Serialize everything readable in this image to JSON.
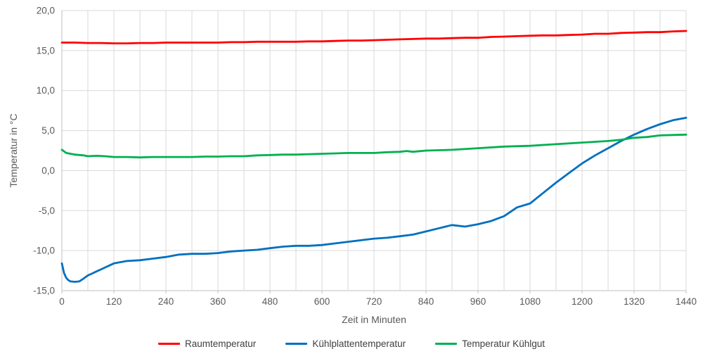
{
  "colors": {
    "background": "#ffffff",
    "gridline": "#d9d9d9",
    "axis_line": "#bfbfbf",
    "tick_text": "#595959",
    "title_text": "#595959",
    "legend_text": "#404040"
  },
  "chart_data": {
    "type": "line",
    "title": "",
    "xlabel": "Zeit in Minuten",
    "ylabel": "Temperatur in °C",
    "xlim": [
      0,
      1440
    ],
    "ylim": [
      -15,
      20
    ],
    "grid": true,
    "x_grid_step": 60,
    "y_grid_step": 5,
    "legend_position": "bottom",
    "x_ticks": [
      {
        "value": 0,
        "label": "0"
      },
      {
        "value": 120,
        "label": "120"
      },
      {
        "value": 240,
        "label": "240"
      },
      {
        "value": 360,
        "label": "360"
      },
      {
        "value": 480,
        "label": "480"
      },
      {
        "value": 600,
        "label": "600"
      },
      {
        "value": 720,
        "label": "720"
      },
      {
        "value": 840,
        "label": "840"
      },
      {
        "value": 960,
        "label": "960"
      },
      {
        "value": 1080,
        "label": "1080"
      },
      {
        "value": 1200,
        "label": "1200"
      },
      {
        "value": 1320,
        "label": "1320"
      },
      {
        "value": 1440,
        "label": "1440"
      }
    ],
    "y_ticks": [
      {
        "value": 20,
        "label": "20,0"
      },
      {
        "value": 15,
        "label": "15,0"
      },
      {
        "value": 10,
        "label": "10,0"
      },
      {
        "value": 5,
        "label": "5,0"
      },
      {
        "value": 0,
        "label": "0,0"
      },
      {
        "value": -5,
        "label": "-5,0"
      },
      {
        "value": -10,
        "label": "-10,0"
      },
      {
        "value": -15,
        "label": "-15,0"
      }
    ],
    "series": [
      {
        "name": "Raumtemperatur",
        "color": "#ff0000",
        "points": [
          [
            0,
            16.0
          ],
          [
            30,
            16.0
          ],
          [
            60,
            15.95
          ],
          [
            90,
            15.95
          ],
          [
            120,
            15.9
          ],
          [
            150,
            15.9
          ],
          [
            180,
            15.95
          ],
          [
            210,
            15.95
          ],
          [
            240,
            16.0
          ],
          [
            270,
            16.0
          ],
          [
            300,
            16.0
          ],
          [
            330,
            16.0
          ],
          [
            360,
            16.0
          ],
          [
            390,
            16.05
          ],
          [
            420,
            16.05
          ],
          [
            450,
            16.1
          ],
          [
            480,
            16.1
          ],
          [
            510,
            16.1
          ],
          [
            540,
            16.1
          ],
          [
            570,
            16.15
          ],
          [
            600,
            16.15
          ],
          [
            630,
            16.2
          ],
          [
            660,
            16.25
          ],
          [
            690,
            16.25
          ],
          [
            720,
            16.3
          ],
          [
            750,
            16.35
          ],
          [
            780,
            16.4
          ],
          [
            810,
            16.45
          ],
          [
            840,
            16.5
          ],
          [
            870,
            16.5
          ],
          [
            900,
            16.55
          ],
          [
            930,
            16.6
          ],
          [
            960,
            16.6
          ],
          [
            990,
            16.7
          ],
          [
            1020,
            16.75
          ],
          [
            1050,
            16.8
          ],
          [
            1080,
            16.85
          ],
          [
            1110,
            16.9
          ],
          [
            1140,
            16.9
          ],
          [
            1170,
            16.95
          ],
          [
            1200,
            17.0
          ],
          [
            1230,
            17.1
          ],
          [
            1260,
            17.1
          ],
          [
            1290,
            17.2
          ],
          [
            1320,
            17.25
          ],
          [
            1350,
            17.3
          ],
          [
            1380,
            17.3
          ],
          [
            1410,
            17.4
          ],
          [
            1440,
            17.45
          ]
        ]
      },
      {
        "name": "Kühlplattentemperatur",
        "color": "#0070c0",
        "points": [
          [
            0,
            -11.6
          ],
          [
            5,
            -12.8
          ],
          [
            10,
            -13.4
          ],
          [
            15,
            -13.7
          ],
          [
            20,
            -13.85
          ],
          [
            30,
            -13.9
          ],
          [
            40,
            -13.85
          ],
          [
            50,
            -13.5
          ],
          [
            60,
            -13.1
          ],
          [
            70,
            -12.85
          ],
          [
            80,
            -12.6
          ],
          [
            90,
            -12.35
          ],
          [
            100,
            -12.1
          ],
          [
            110,
            -11.85
          ],
          [
            120,
            -11.6
          ],
          [
            150,
            -11.3
          ],
          [
            180,
            -11.2
          ],
          [
            210,
            -11.0
          ],
          [
            240,
            -10.8
          ],
          [
            270,
            -10.5
          ],
          [
            300,
            -10.4
          ],
          [
            330,
            -10.4
          ],
          [
            360,
            -10.3
          ],
          [
            390,
            -10.1
          ],
          [
            420,
            -10.0
          ],
          [
            450,
            -9.9
          ],
          [
            480,
            -9.7
          ],
          [
            510,
            -9.5
          ],
          [
            540,
            -9.4
          ],
          [
            570,
            -9.4
          ],
          [
            600,
            -9.3
          ],
          [
            630,
            -9.1
          ],
          [
            660,
            -8.9
          ],
          [
            690,
            -8.7
          ],
          [
            720,
            -8.5
          ],
          [
            750,
            -8.4
          ],
          [
            780,
            -8.2
          ],
          [
            810,
            -8.0
          ],
          [
            840,
            -7.6
          ],
          [
            870,
            -7.2
          ],
          [
            900,
            -6.8
          ],
          [
            930,
            -7.0
          ],
          [
            960,
            -6.7
          ],
          [
            990,
            -6.3
          ],
          [
            1020,
            -5.7
          ],
          [
            1050,
            -4.6
          ],
          [
            1080,
            -4.1
          ],
          [
            1110,
            -2.8
          ],
          [
            1140,
            -1.5
          ],
          [
            1170,
            -0.3
          ],
          [
            1200,
            0.9
          ],
          [
            1230,
            1.9
          ],
          [
            1260,
            2.8
          ],
          [
            1290,
            3.7
          ],
          [
            1320,
            4.5
          ],
          [
            1350,
            5.2
          ],
          [
            1380,
            5.8
          ],
          [
            1410,
            6.3
          ],
          [
            1440,
            6.6
          ]
        ]
      },
      {
        "name": "Temperatur Kühlgut",
        "color": "#00b050",
        "points": [
          [
            0,
            2.6
          ],
          [
            10,
            2.2
          ],
          [
            20,
            2.1
          ],
          [
            30,
            2.0
          ],
          [
            50,
            1.9
          ],
          [
            60,
            1.8
          ],
          [
            80,
            1.85
          ],
          [
            100,
            1.8
          ],
          [
            120,
            1.7
          ],
          [
            150,
            1.7
          ],
          [
            180,
            1.65
          ],
          [
            210,
            1.7
          ],
          [
            240,
            1.7
          ],
          [
            270,
            1.7
          ],
          [
            300,
            1.7
          ],
          [
            330,
            1.75
          ],
          [
            360,
            1.75
          ],
          [
            390,
            1.8
          ],
          [
            420,
            1.8
          ],
          [
            450,
            1.9
          ],
          [
            480,
            1.95
          ],
          [
            510,
            2.0
          ],
          [
            540,
            2.0
          ],
          [
            570,
            2.05
          ],
          [
            600,
            2.1
          ],
          [
            630,
            2.15
          ],
          [
            660,
            2.2
          ],
          [
            690,
            2.2
          ],
          [
            720,
            2.2
          ],
          [
            750,
            2.3
          ],
          [
            780,
            2.35
          ],
          [
            795,
            2.45
          ],
          [
            810,
            2.35
          ],
          [
            840,
            2.5
          ],
          [
            900,
            2.6
          ],
          [
            960,
            2.8
          ],
          [
            1020,
            3.0
          ],
          [
            1080,
            3.1
          ],
          [
            1140,
            3.3
          ],
          [
            1200,
            3.5
          ],
          [
            1260,
            3.7
          ],
          [
            1290,
            3.85
          ],
          [
            1320,
            4.1
          ],
          [
            1350,
            4.2
          ],
          [
            1380,
            4.4
          ],
          [
            1410,
            4.45
          ],
          [
            1440,
            4.5
          ]
        ]
      }
    ]
  }
}
